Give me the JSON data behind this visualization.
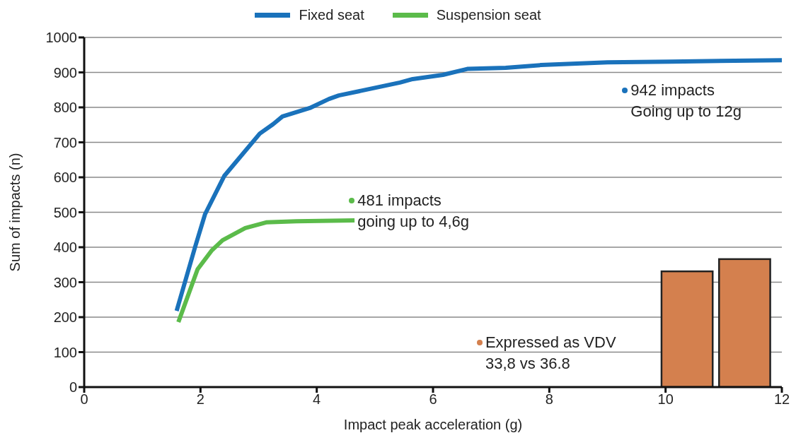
{
  "chart_data": {
    "type": "line",
    "xlabel": "Impact peak acceleration (g)",
    "ylabel": "Sum of impacts (n)",
    "series": [
      {
        "name": "Fixed seat",
        "color": "#1a72bb",
        "x": [
          1.59,
          1.91,
          2.08,
          2.41,
          3.02,
          3.25,
          3.41,
          3.88,
          4.21,
          4.38,
          5.43,
          5.65,
          6.17,
          6.59,
          7.25,
          7.86,
          9.0,
          10.1,
          12.0
        ],
        "values": [
          218,
          402,
          495,
          604,
          725,
          752,
          774,
          798,
          824,
          834,
          871,
          881,
          893,
          910,
          913,
          921,
          929,
          931,
          935
        ]
      },
      {
        "name": "Suspension seat",
        "color": "#5bbb4a",
        "x": [
          1.62,
          1.95,
          2.19,
          2.38,
          2.77,
          3.13,
          3.65,
          4.65
        ],
        "values": [
          186,
          337,
          390,
          420,
          455,
          471,
          474,
          477
        ]
      },
      {
        "type": "bar",
        "color": "#d4804e",
        "x": [
          10.37,
          11.36
        ],
        "values": [
          331,
          366
        ]
      }
    ],
    "annotations": [
      "942 impacts\nGoing up to 12g",
      "481 impacts\ngoing up to 4,6g",
      "Expressed as VDV\n33,8 vs 36.8"
    ],
    "xlim": [
      0,
      12
    ],
    "xticks": [
      0,
      2,
      4,
      6,
      8,
      10,
      12
    ],
    "ylim": [
      0,
      1000
    ],
    "yticks": [
      0,
      100,
      200,
      300,
      400,
      500,
      600,
      700,
      800,
      900,
      1000
    ],
    "grid": "y",
    "legend": "top",
    "marker": "none",
    "line_style": "solid"
  }
}
